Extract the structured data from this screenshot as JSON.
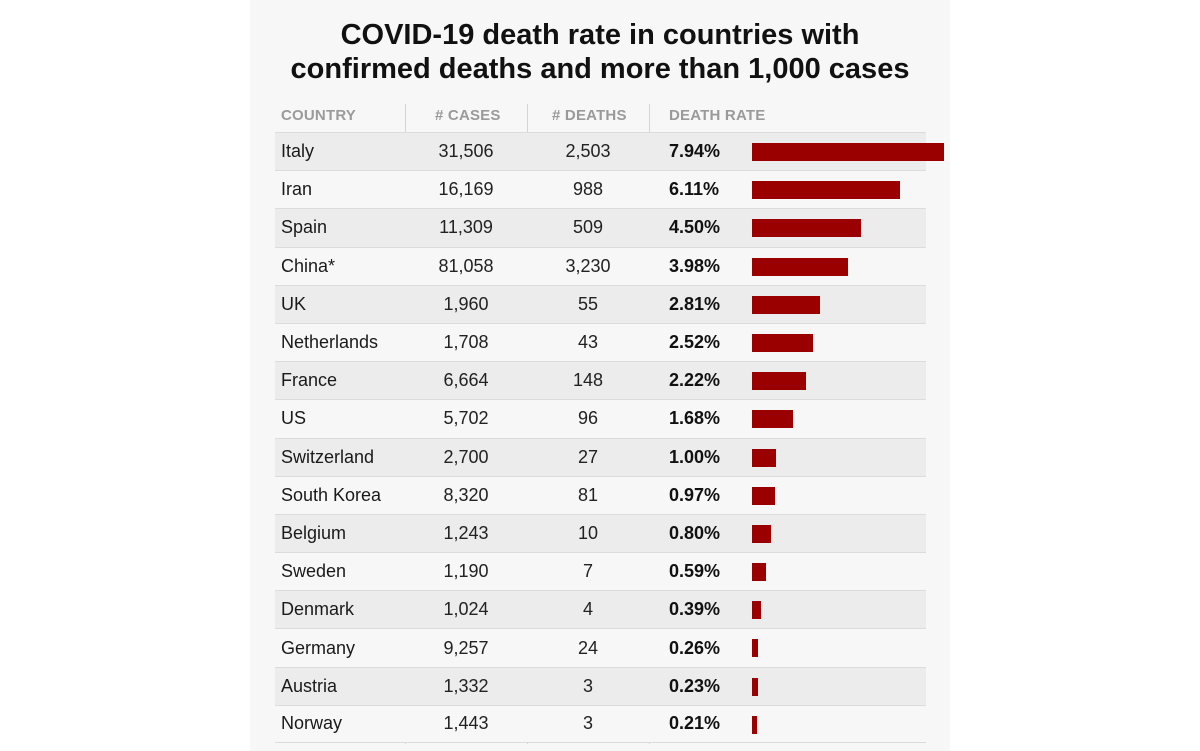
{
  "chart_data": {
    "type": "table",
    "title_lines": [
      "COVID-19 death rate in countries with",
      "confirmed deaths and more than 1,000 cases"
    ],
    "columns": [
      "COUNTRY",
      "# CASES",
      "# DEATHS",
      "DEATH RATE"
    ],
    "rows": [
      {
        "country": "Italy",
        "cases": "31,506",
        "deaths": "2,503",
        "rate_label": "7.94%",
        "rate": 7.94
      },
      {
        "country": "Iran",
        "cases": "16,169",
        "deaths": "988",
        "rate_label": "6.11%",
        "rate": 6.11
      },
      {
        "country": "Spain",
        "cases": "11,309",
        "deaths": "509",
        "rate_label": "4.50%",
        "rate": 4.5
      },
      {
        "country": "China*",
        "cases": "81,058",
        "deaths": "3,230",
        "rate_label": "3.98%",
        "rate": 3.98
      },
      {
        "country": "UK",
        "cases": "1,960",
        "deaths": "55",
        "rate_label": "2.81%",
        "rate": 2.81
      },
      {
        "country": "Netherlands",
        "cases": "1,708",
        "deaths": "43",
        "rate_label": "2.52%",
        "rate": 2.52
      },
      {
        "country": "France",
        "cases": "6,664",
        "deaths": "148",
        "rate_label": "2.22%",
        "rate": 2.22
      },
      {
        "country": "US",
        "cases": "5,702",
        "deaths": "96",
        "rate_label": "1.68%",
        "rate": 1.68
      },
      {
        "country": "Switzerland",
        "cases": "2,700",
        "deaths": "27",
        "rate_label": "1.00%",
        "rate": 1.0
      },
      {
        "country": "South Korea",
        "cases": "8,320",
        "deaths": "81",
        "rate_label": "0.97%",
        "rate": 0.97
      },
      {
        "country": "Belgium",
        "cases": "1,243",
        "deaths": "10",
        "rate_label": "0.80%",
        "rate": 0.8
      },
      {
        "country": "Sweden",
        "cases": "1,190",
        "deaths": "7",
        "rate_label": "0.59%",
        "rate": 0.59
      },
      {
        "country": "Denmark",
        "cases": "1,024",
        "deaths": "4",
        "rate_label": "0.39%",
        "rate": 0.39
      },
      {
        "country": "Germany",
        "cases": "9,257",
        "deaths": "24",
        "rate_label": "0.26%",
        "rate": 0.26
      },
      {
        "country": "Austria",
        "cases": "1,332",
        "deaths": "3",
        "rate_label": "0.23%",
        "rate": 0.23
      },
      {
        "country": "Norway",
        "cases": "1,443",
        "deaths": "3",
        "rate_label": "0.21%",
        "rate": 0.21
      }
    ],
    "bar_color": "#9b0000",
    "rate_max": 7.94
  }
}
